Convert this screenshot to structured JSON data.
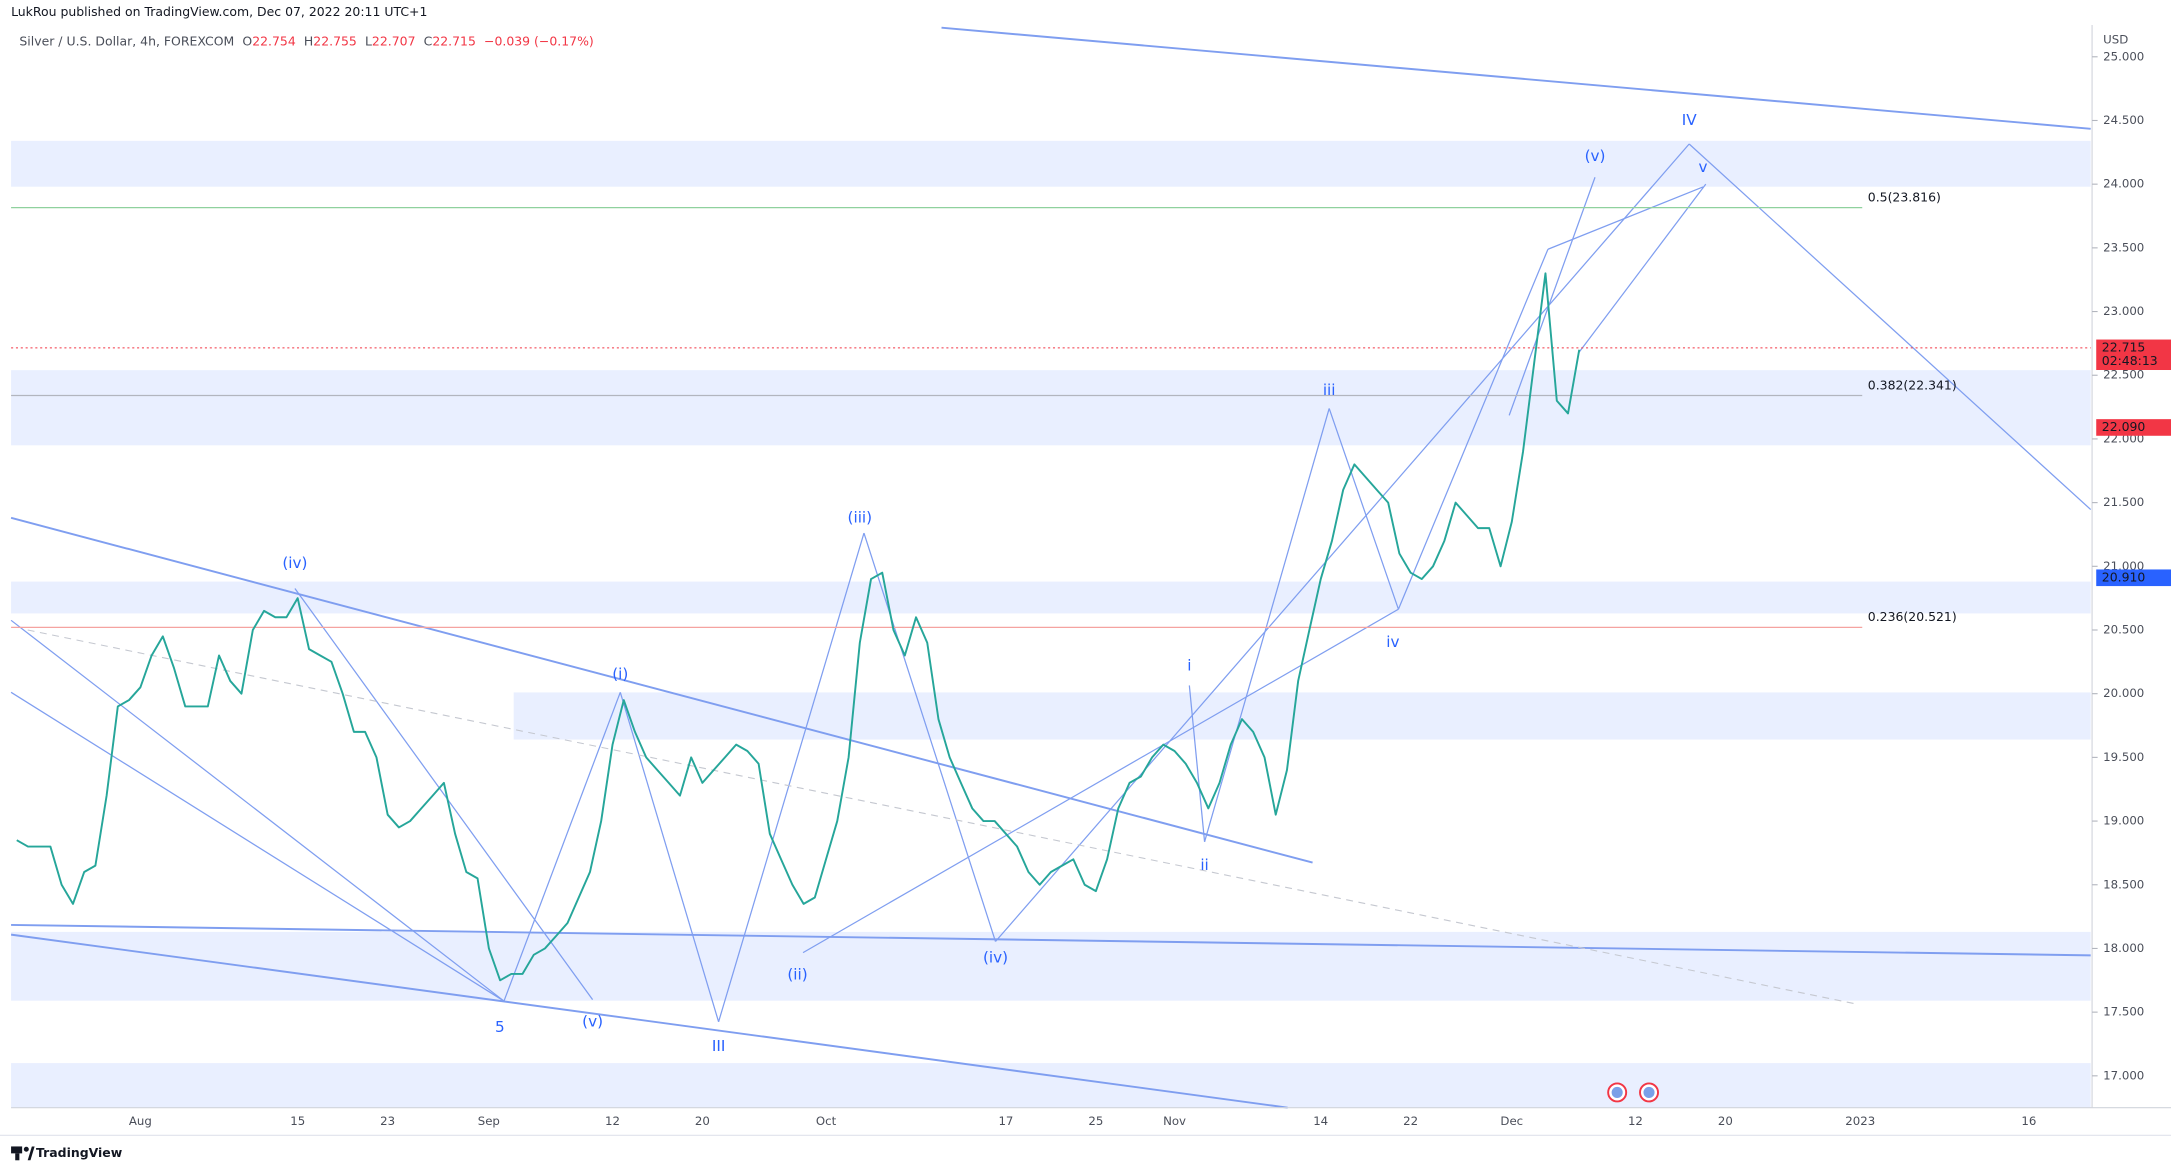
{
  "header": {
    "publisher": "LukRou published on TradingView.com, Dec 07, 2022 20:11 UTC+1",
    "symbol": "Silver / U.S. Dollar, 4h, FOREXCOM",
    "ohlc": [
      {
        "k": "O",
        "v": "22.754"
      },
      {
        "k": "H",
        "v": "22.755"
      },
      {
        "k": "L",
        "v": "22.707"
      },
      {
        "k": "C",
        "v": "22.715"
      }
    ],
    "change": "−0.039 (−0.17%)",
    "currency": "USD"
  },
  "footer": {
    "brand": "TradingView"
  },
  "chart_data": {
    "type": "line",
    "color": "#26a69a",
    "categories": [
      null,
      null,
      null,
      null,
      null,
      null,
      null,
      null,
      null,
      null,
      null,
      "Aug",
      null,
      null,
      null,
      null,
      null,
      null,
      null,
      null,
      null,
      null,
      null,
      null,
      null,
      "15",
      null,
      null,
      null,
      null,
      null,
      null,
      null,
      "23",
      null,
      null,
      null,
      null,
      null,
      null,
      null,
      null,
      "Sep",
      null,
      null,
      null,
      null,
      null,
      null,
      null,
      null,
      null,
      null,
      "12",
      null,
      null,
      null,
      null,
      null,
      null,
      null,
      "20",
      null,
      null,
      null,
      null,
      null,
      null,
      null,
      null,
      null,
      null,
      "Oct",
      null,
      null,
      null,
      null,
      null,
      null,
      null,
      null,
      null,
      null,
      null,
      null,
      null,
      null,
      null,
      "17",
      null,
      null,
      null,
      null,
      null,
      null,
      null,
      "25",
      null,
      null,
      null,
      null,
      null,
      null,
      "Nov",
      null,
      null,
      null,
      null,
      null,
      null,
      null,
      null,
      null,
      null,
      null,
      null,
      "14",
      null,
      null,
      null,
      null,
      null,
      null,
      null,
      "22",
      null,
      null,
      null,
      null,
      null,
      null,
      null,
      null,
      "Dec",
      null,
      null,
      null,
      null,
      null,
      null,
      null,
      null,
      null,
      null,
      "12",
      null,
      null,
      null,
      null,
      null,
      null,
      null,
      "20",
      null,
      null,
      null,
      null,
      null,
      null,
      null,
      null,
      null,
      null,
      null,
      "2023",
      null,
      null,
      null,
      null,
      null,
      null,
      null,
      null,
      null,
      null,
      null,
      null,
      null,
      null,
      "16",
      null,
      null,
      null,
      null,
      null
    ],
    "values": [
      18.85,
      18.8,
      18.8,
      18.8,
      18.5,
      18.35,
      18.6,
      18.65,
      19.2,
      19.9,
      19.95,
      20.05,
      20.3,
      20.45,
      20.2,
      19.9,
      19.9,
      19.9,
      20.3,
      20.1,
      20.0,
      20.5,
      20.65,
      20.6,
      20.6,
      20.75,
      20.35,
      20.3,
      20.25,
      20.0,
      19.7,
      19.7,
      19.5,
      19.05,
      18.95,
      19.0,
      19.1,
      19.2,
      19.3,
      18.9,
      18.6,
      18.55,
      18.0,
      17.75,
      17.8,
      17.8,
      17.95,
      18.0,
      18.1,
      18.2,
      18.4,
      18.6,
      19.0,
      19.6,
      19.95,
      19.7,
      19.5,
      19.4,
      19.3,
      19.2,
      19.5,
      19.3,
      19.4,
      19.5,
      19.6,
      19.55,
      19.45,
      18.9,
      18.7,
      18.5,
      18.35,
      18.4,
      18.7,
      19.0,
      19.5,
      20.4,
      20.9,
      20.95,
      20.5,
      20.3,
      20.6,
      20.4,
      19.8,
      19.5,
      19.3,
      19.1,
      19.0,
      19.0,
      18.9,
      18.8,
      18.6,
      18.5,
      18.6,
      18.65,
      18.7,
      18.5,
      18.45,
      18.7,
      19.1,
      19.3,
      19.35,
      19.5,
      19.6,
      19.55,
      19.45,
      19.3,
      19.1,
      19.3,
      19.6,
      19.8,
      19.7,
      19.5,
      19.05,
      19.4,
      20.1,
      20.5,
      20.9,
      21.2,
      21.6,
      21.8,
      21.7,
      21.6,
      21.5,
      21.1,
      20.95,
      20.9,
      21.0,
      21.2,
      21.5,
      21.4,
      21.3,
      21.3,
      21.0,
      21.35,
      21.9,
      22.6,
      23.3,
      22.3,
      22.2,
      22.7,
      null,
      null,
      null,
      null,
      null,
      null,
      null,
      null,
      null,
      null,
      null,
      null,
      null,
      null,
      null,
      null,
      null,
      null,
      null,
      null,
      null,
      null,
      null,
      null,
      null,
      null,
      null,
      null,
      null,
      null,
      null,
      null,
      null,
      null,
      null,
      null,
      null,
      null,
      null,
      null,
      null,
      null,
      null,
      null,
      null
    ],
    "ylim": [
      16.75,
      25.25
    ],
    "yticks": [
      {
        "value": 17,
        "label": "17.000"
      },
      {
        "value": 17.5,
        "label": "17.500"
      },
      {
        "value": 18,
        "label": "18.000"
      },
      {
        "value": 18.5,
        "label": "18.500"
      },
      {
        "value": 19,
        "label": "19.000"
      },
      {
        "value": 19.5,
        "label": "19.500"
      },
      {
        "value": 20,
        "label": "20.000"
      },
      {
        "value": 20.5,
        "label": "20.500"
      },
      {
        "value": 21,
        "label": "21.000"
      },
      {
        "value": 21.5,
        "label": "21.500"
      },
      {
        "value": 22,
        "label": "22.000"
      },
      {
        "value": 22.5,
        "label": "22.500"
      },
      {
        "value": 23,
        "label": "23.000"
      },
      {
        "value": 23.5,
        "label": "23.500"
      },
      {
        "value": 24,
        "label": "24.000"
      },
      {
        "value": 24.5,
        "label": "24.500"
      },
      {
        "value": 25,
        "label": "25.000"
      }
    ],
    "last_price": {
      "value": 22.715,
      "label": "22.715",
      "countdown": "02:48:13",
      "color": "#f23645"
    },
    "price_markers": [
      {
        "value": 22.09,
        "label": "22.090",
        "color": "#f23645"
      },
      {
        "value": 20.91,
        "label": "20.910",
        "color": "#2962ff"
      }
    ],
    "fib_levels": [
      {
        "value": 23.816,
        "label": "0.5(23.816)",
        "color": "#8fd19e"
      },
      {
        "value": 22.341,
        "label": "0.382(22.341)",
        "color": "#b2b5be"
      },
      {
        "value": 20.521,
        "label": "0.236(20.521)",
        "color": "#f5a3a0"
      }
    ],
    "zones": [
      {
        "from": 23.98,
        "to": 24.34
      },
      {
        "from": 21.95,
        "to": 22.54
      },
      {
        "from": 20.63,
        "to": 20.88
      },
      {
        "from": 19.64,
        "to": 20.01
      },
      {
        "from": 17.59,
        "to": 18.13
      },
      {
        "from": 16.75,
        "to": 17.1
      }
    ],
    "annotations": [
      "(iv)",
      "(i)",
      "(iii)",
      "5",
      "(v)",
      "III",
      "(ii)",
      "(iv)",
      "i",
      "ii",
      "iii",
      "iv",
      "(v)",
      "v",
      "IV"
    ]
  }
}
